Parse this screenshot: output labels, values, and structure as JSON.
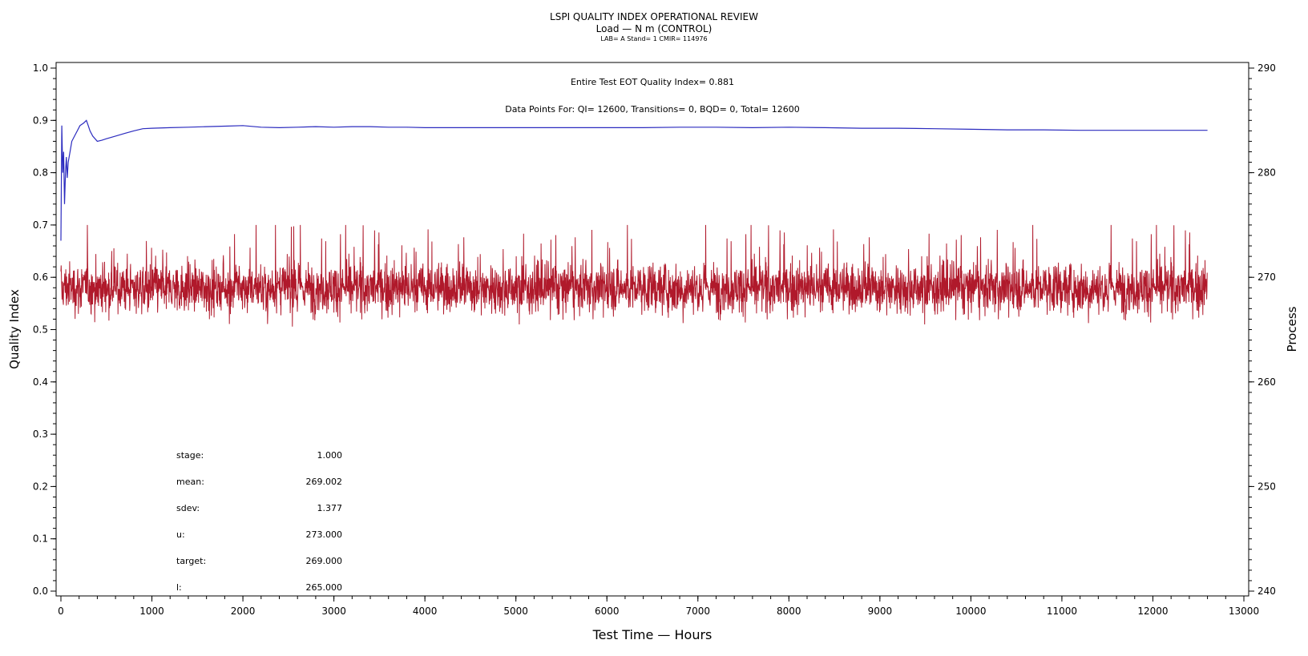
{
  "titles": {
    "line1": "LSPI QUALITY INDEX OPERATIONAL REVIEW",
    "line2": "Load — N m (CONTROL)",
    "line3": "LAB= A Stand= 1 CMIR= 114976"
  },
  "annotations": {
    "eot": "Entire Test EOT Quality Index=   0.881",
    "points": "Data Points For: QI= 12600, Transitions=     0, BQD=     0, Total= 12600"
  },
  "stats": [
    {
      "label": "stage:",
      "value": "1.000"
    },
    {
      "label": "mean:",
      "value": "269.002"
    },
    {
      "label": "sdev:",
      "value": "1.377"
    },
    {
      "label": "u:",
      "value": "273.000"
    },
    {
      "label": "target:",
      "value": "269.000"
    },
    {
      "label": "l:",
      "value": "265.000"
    }
  ],
  "colors": {
    "quality_index": "#2b2bbf",
    "process": "#b0192b",
    "axis": "#000000"
  },
  "chart_data": {
    "type": "line",
    "xlabel": "Test Time — Hours",
    "ylabel": "Quality Index",
    "y2label": "Process",
    "xlim": [
      0,
      13000
    ],
    "ylim": [
      0,
      1.0
    ],
    "y2lim": [
      240,
      290
    ],
    "xticks": [
      0,
      1000,
      2000,
      3000,
      4000,
      5000,
      6000,
      7000,
      8000,
      9000,
      10000,
      11000,
      12000,
      13000
    ],
    "yticks": [
      0.0,
      0.1,
      0.2,
      0.3,
      0.4,
      0.5,
      0.6,
      0.7,
      0.8,
      0.9,
      1.0
    ],
    "ytick_labels": [
      "0.0",
      "0.1",
      "0.2",
      "0.3",
      "0.4",
      "0.5",
      "0.6",
      "0.7",
      "0.8",
      "0.9",
      "1.0"
    ],
    "y2ticks": [
      240,
      250,
      260,
      270,
      280,
      290
    ],
    "series": [
      {
        "axis": "left",
        "x": [
          0,
          10,
          20,
          30,
          40,
          50,
          60,
          70,
          80,
          100,
          120,
          150,
          180,
          210,
          250,
          280,
          300,
          320,
          350,
          400,
          450,
          500,
          600,
          700,
          800,
          900,
          1000,
          1200,
          1400,
          1600,
          1800,
          2000,
          2200,
          2400,
          2600,
          2800,
          3000,
          3200,
          3400,
          3600,
          3800,
          4000,
          4400,
          4800,
          5200,
          5600,
          6000,
          6400,
          6800,
          7200,
          7600,
          8000,
          8400,
          8800,
          9200,
          9600,
          10000,
          10400,
          10800,
          11200,
          11600,
          12000,
          12400,
          12600
        ],
        "y": [
          0.67,
          0.89,
          0.8,
          0.84,
          0.74,
          0.8,
          0.83,
          0.79,
          0.82,
          0.84,
          0.86,
          0.87,
          0.88,
          0.89,
          0.895,
          0.9,
          0.89,
          0.88,
          0.87,
          0.86,
          0.862,
          0.865,
          0.87,
          0.875,
          0.88,
          0.884,
          0.885,
          0.886,
          0.887,
          0.888,
          0.889,
          0.89,
          0.887,
          0.886,
          0.887,
          0.888,
          0.887,
          0.888,
          0.888,
          0.887,
          0.887,
          0.886,
          0.886,
          0.886,
          0.886,
          0.886,
          0.886,
          0.886,
          0.887,
          0.887,
          0.886,
          0.887,
          0.886,
          0.885,
          0.885,
          0.884,
          0.883,
          0.882,
          0.882,
          0.881,
          0.881,
          0.881,
          0.881,
          0.881
        ]
      },
      {
        "axis": "right",
        "mean": 269.002,
        "sdev": 1.377,
        "x_start": 0,
        "x_end": 12600,
        "n": 12600,
        "note_values_estimated": true,
        "y_min": 265.0,
        "y_max": 275.0
      }
    ]
  }
}
